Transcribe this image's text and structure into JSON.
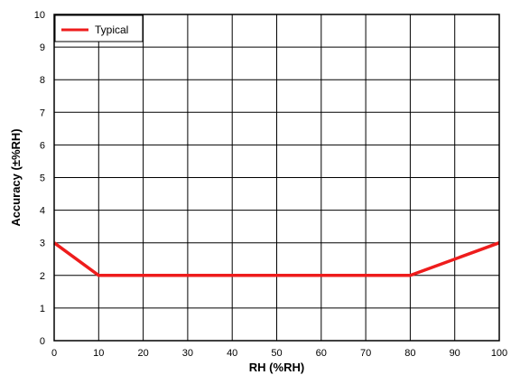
{
  "chart_data": {
    "type": "line",
    "title": "",
    "xlabel": "RH (%RH)",
    "ylabel": "Accuracy (±%RH)",
    "xlim": [
      0,
      100
    ],
    "ylim": [
      0,
      10
    ],
    "x_ticks": [
      0,
      10,
      20,
      30,
      40,
      50,
      60,
      70,
      80,
      90,
      100
    ],
    "y_ticks": [
      0,
      1,
      2,
      3,
      4,
      5,
      6,
      7,
      8,
      9,
      10
    ],
    "grid": true,
    "legend_position": "top-left",
    "series": [
      {
        "name": "Typical",
        "color": "#ee1c1c",
        "x": [
          0,
          10,
          80,
          100
        ],
        "y": [
          3,
          2,
          2,
          3
        ]
      }
    ]
  }
}
